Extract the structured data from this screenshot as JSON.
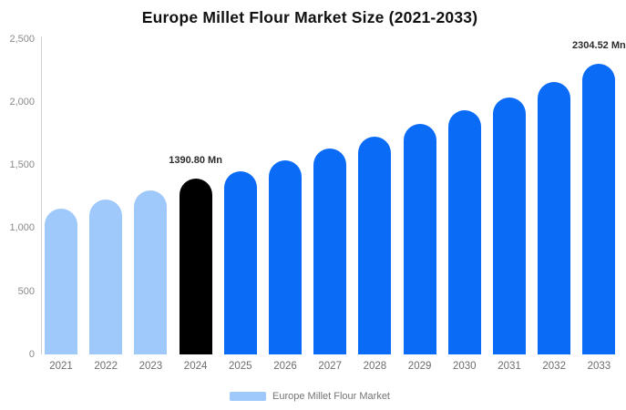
{
  "title": "Europe Millet Flour Market Size (2021-2033)",
  "chart_data": {
    "type": "bar",
    "title": "Europe Millet Flour Market Size (2021-2033)",
    "categories": [
      "2021",
      "2022",
      "2023",
      "2024",
      "2025",
      "2026",
      "2027",
      "2028",
      "2029",
      "2030",
      "2031",
      "2032",
      "2033"
    ],
    "series": [
      {
        "name": "Europe Millet Flour Market",
        "values": [
          1155,
          1228,
          1297,
          1390.8,
          1448,
          1540,
          1630,
          1722,
          1828,
          1932,
          2035,
          2155,
          2304.52
        ]
      }
    ],
    "point_colors": [
      "#9ec9fa",
      "#9ec9fa",
      "#9ec9fa",
      "#000000",
      "#0a6bf7",
      "#0a6bf7",
      "#0a6bf7",
      "#0a6bf7",
      "#0a6bf7",
      "#0a6bf7",
      "#0a6bf7",
      "#0a6bf7",
      "#0a6bf7"
    ],
    "xlabel": "",
    "ylabel": "",
    "ylim": [
      0,
      2500
    ],
    "y_ticks": [
      {
        "value": 0,
        "label": "0"
      },
      {
        "value": 500,
        "label": "500"
      },
      {
        "value": 1000,
        "label": "1,000"
      },
      {
        "value": 1500,
        "label": "1,500"
      },
      {
        "value": 2000,
        "label": "2,000"
      },
      {
        "value": 2500,
        "label": "2,500"
      }
    ],
    "grid": false,
    "legend_position": "bottom",
    "annotations": [
      {
        "category": "2024",
        "text": "1390.80 Mn"
      },
      {
        "category": "2033",
        "text": "2304.52 Mn"
      }
    ],
    "annotation_color": "#2b2b2b"
  },
  "legend": {
    "label": "Europe Millet Flour Market",
    "swatch_color": "#9ec9fa"
  }
}
